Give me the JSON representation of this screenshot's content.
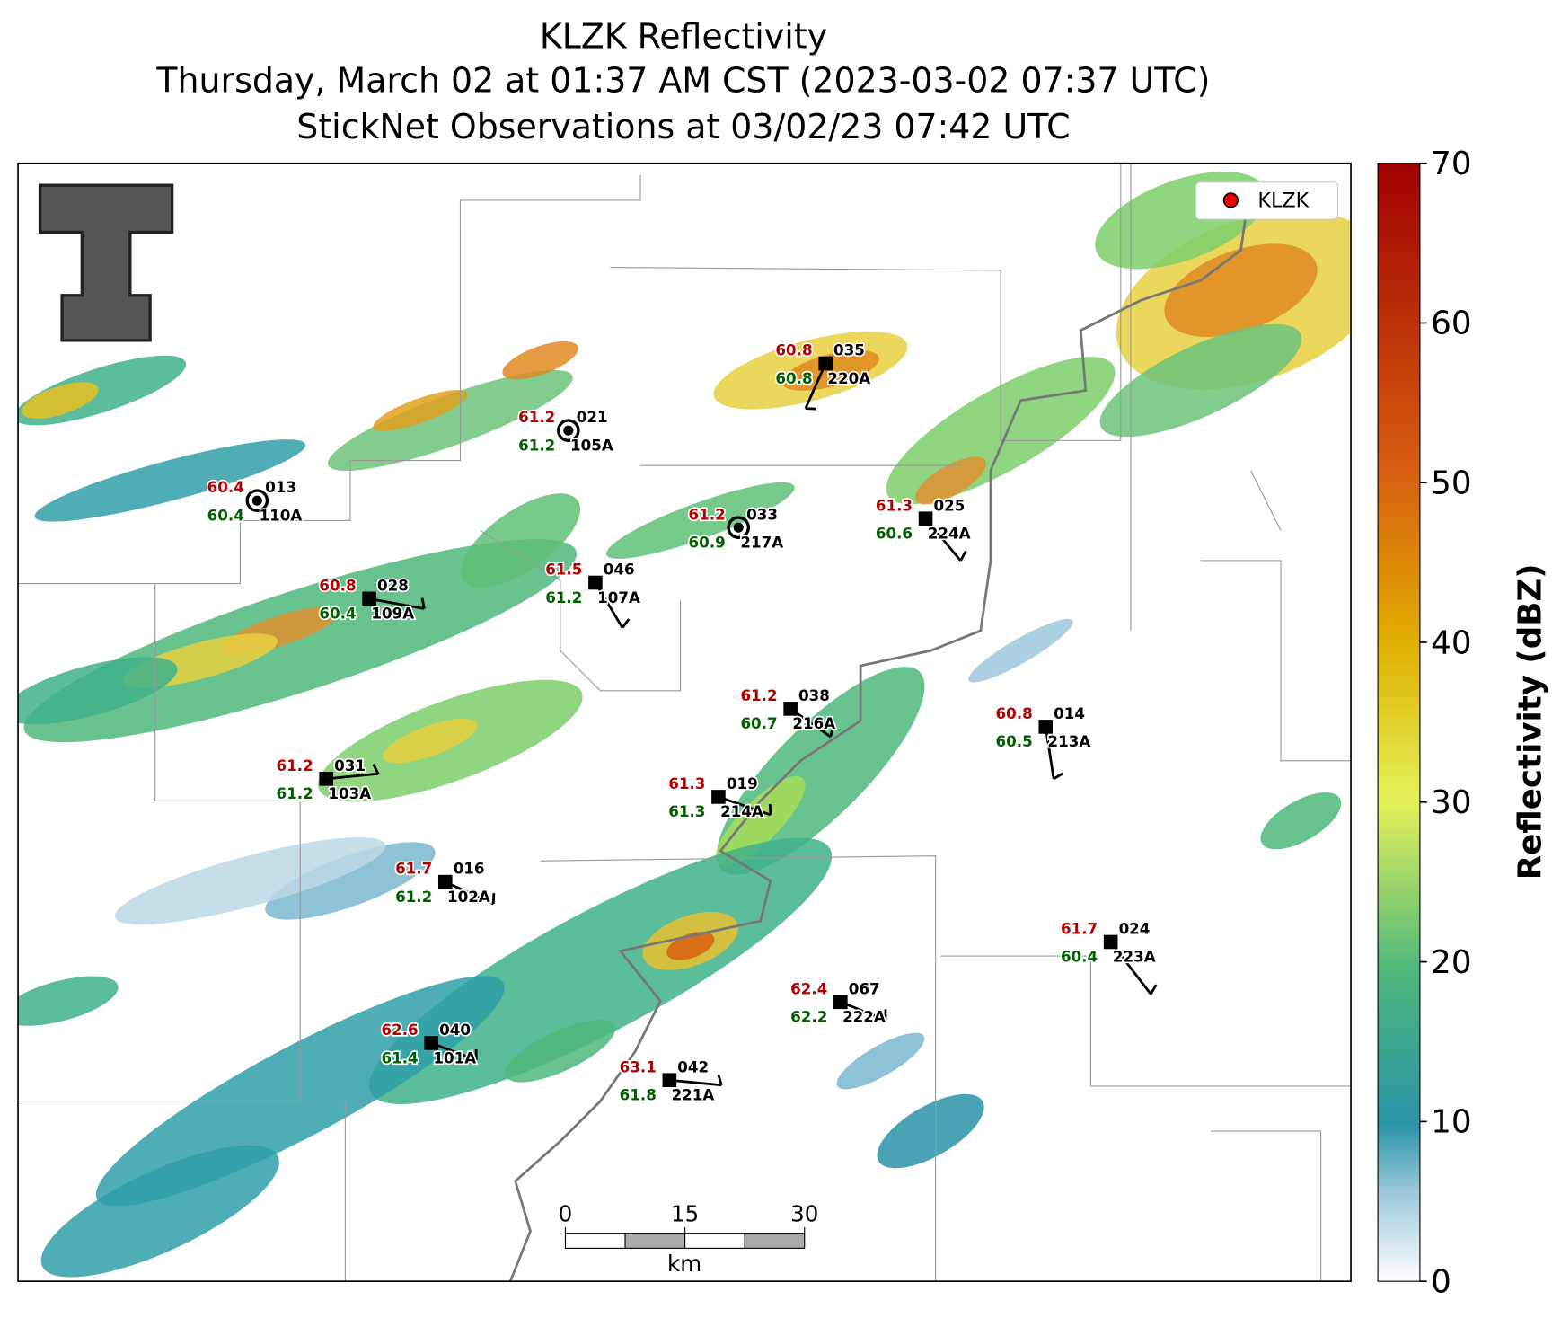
{
  "header": {
    "title_lines": [
      "KLZK Reflectivity",
      "Thursday, March 02 at 01:37 AM CST (2023-03-02 07:37 UTC)",
      "StickNet Observations at 03/02/23 07:42 UTC"
    ]
  },
  "legend": {
    "label": "KLZK"
  },
  "colorbar": {
    "label": "Reflectivity (dBZ)",
    "lim": [
      0,
      70
    ],
    "ticks": [
      0,
      10,
      20,
      30,
      40,
      50,
      60,
      70
    ]
  },
  "scale_bar": {
    "lim": [
      0,
      30
    ],
    "ticks": [
      0,
      15,
      30
    ],
    "unit": "km"
  },
  "stations": [
    {
      "id": "013",
      "temperature": 60.4,
      "dewpoint": 60.4,
      "probe": "110A"
    },
    {
      "id": "021",
      "temperature": 61.2,
      "dewpoint": 61.2,
      "probe": "105A"
    },
    {
      "id": "035",
      "temperature": 60.8,
      "dewpoint": 60.8,
      "probe": "220A"
    },
    {
      "id": "033",
      "temperature": 61.2,
      "dewpoint": 60.9,
      "probe": "217A"
    },
    {
      "id": "025",
      "temperature": 61.3,
      "dewpoint": 60.6,
      "probe": "224A"
    },
    {
      "id": "028",
      "temperature": 60.8,
      "dewpoint": 60.4,
      "probe": "109A"
    },
    {
      "id": "046",
      "temperature": 61.5,
      "dewpoint": 61.2,
      "probe": "107A"
    },
    {
      "id": "038",
      "temperature": 61.2,
      "dewpoint": 60.7,
      "probe": "216A"
    },
    {
      "id": "014",
      "temperature": 60.8,
      "dewpoint": 60.5,
      "probe": "213A"
    },
    {
      "id": "031",
      "temperature": 61.2,
      "dewpoint": 61.2,
      "probe": "103A"
    },
    {
      "id": "019",
      "temperature": 61.3,
      "dewpoint": 61.3,
      "probe": "214A"
    },
    {
      "id": "016",
      "temperature": 61.7,
      "dewpoint": 61.2,
      "probe": "102A"
    },
    {
      "id": "024",
      "temperature": 61.7,
      "dewpoint": 60.4,
      "probe": "223A"
    },
    {
      "id": "067",
      "temperature": 62.4,
      "dewpoint": 62.2,
      "probe": "222A"
    },
    {
      "id": "040",
      "temperature": 62.6,
      "dewpoint": 61.4,
      "probe": "101A"
    },
    {
      "id": "042",
      "temperature": 63.1,
      "dewpoint": 61.8,
      "probe": "221A"
    }
  ]
}
